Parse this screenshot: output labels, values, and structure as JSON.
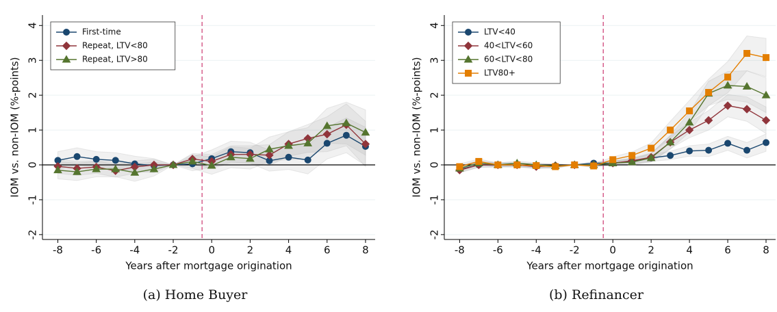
{
  "chart_data": [
    {
      "type": "line",
      "caption": "(a) Home Buyer",
      "x_label": "Years after mortgage origination",
      "y_label": "IOM vs. non-IOM (%-points)",
      "x": [
        -8,
        -7,
        -6,
        -5,
        -4,
        -3,
        -2,
        -1,
        0,
        1,
        2,
        3,
        4,
        5,
        6,
        7,
        8
      ],
      "xlim": [
        -8.8,
        8.5
      ],
      "xticks": [
        -8,
        -6,
        -4,
        -2,
        0,
        2,
        4,
        6,
        8
      ],
      "ylim": [
        -2.14,
        4.3
      ],
      "yticks": [
        -2,
        -1,
        0,
        1,
        2,
        3,
        4
      ],
      "grid": true,
      "vline": -0.5,
      "hline": 0,
      "legend": "top-left",
      "series": [
        {
          "name": "First-time",
          "color": "#1a476f",
          "marker": "circle",
          "values": [
            0.13,
            0.24,
            0.16,
            0.13,
            0.03,
            -0.02,
            0,
            0.03,
            0.18,
            0.38,
            0.35,
            0.12,
            0.22,
            0.14,
            0.62,
            0.85,
            0.53
          ],
          "ci": [
            0.25,
            0.25,
            0.22,
            0.22,
            0.22,
            0.2,
            0,
            0.2,
            0.25,
            0.3,
            0.3,
            0.3,
            0.35,
            0.4,
            0.45,
            0.5,
            0.55
          ]
        },
        {
          "name": "Repeat, LTV<80",
          "color": "#90353b",
          "marker": "diamond",
          "values": [
            -0.04,
            -0.1,
            -0.06,
            -0.17,
            -0.06,
            0.0,
            0,
            0.17,
            0.1,
            0.3,
            0.3,
            0.28,
            0.6,
            0.76,
            0.88,
            1.15,
            0.6
          ],
          "ci": [
            0.2,
            0.2,
            0.18,
            0.18,
            0.18,
            0.16,
            0,
            0.16,
            0.2,
            0.25,
            0.25,
            0.3,
            0.35,
            0.4,
            0.5,
            0.6,
            0.65
          ]
        },
        {
          "name": "Repeat, LTV>80",
          "color": "#55752f",
          "marker": "triangle",
          "values": [
            -0.15,
            -0.2,
            -0.12,
            -0.12,
            -0.22,
            -0.12,
            0,
            0.1,
            -0.02,
            0.22,
            0.18,
            0.45,
            0.55,
            0.62,
            1.12,
            1.2,
            0.93
          ],
          "ci": [
            0.25,
            0.25,
            0.22,
            0.22,
            0.25,
            0.2,
            0,
            0.2,
            0.25,
            0.3,
            0.3,
            0.35,
            0.4,
            0.45,
            0.5,
            0.6,
            0.65
          ]
        }
      ]
    },
    {
      "type": "line",
      "caption": "(b) Refinancer",
      "x_label": "Years after mortgage origination",
      "y_label": "IOM vs. non-IOM (%-points)",
      "x": [
        -8,
        -7,
        -6,
        -5,
        -4,
        -3,
        -2,
        -1,
        0,
        1,
        2,
        3,
        4,
        5,
        6,
        7,
        8
      ],
      "xlim": [
        -8.8,
        8.5
      ],
      "xticks": [
        -8,
        -6,
        -4,
        -2,
        0,
        2,
        4,
        6,
        8
      ],
      "ylim": [
        -2.14,
        4.3
      ],
      "yticks": [
        -2,
        -1,
        0,
        1,
        2,
        3,
        4
      ],
      "grid": true,
      "vline": -0.5,
      "hline": 0,
      "legend": "top-left",
      "series": [
        {
          "name": "LTV<40",
          "color": "#1a476f",
          "marker": "circle",
          "values": [
            -0.13,
            0.0,
            0.0,
            0.0,
            -0.03,
            -0.03,
            0,
            0.05,
            0.05,
            0.1,
            0.2,
            0.27,
            0.4,
            0.42,
            0.62,
            0.42,
            0.64
          ],
          "ci": [
            0.08,
            0.07,
            0.06,
            0.06,
            0.06,
            0.05,
            0,
            0.05,
            0.06,
            0.08,
            0.1,
            0.12,
            0.15,
            0.18,
            0.2,
            0.22,
            0.25
          ]
        },
        {
          "name": "40<LTV<60",
          "color": "#90353b",
          "marker": "diamond",
          "values": [
            -0.15,
            0.0,
            0.0,
            0.0,
            -0.05,
            -0.02,
            0,
            0.0,
            0.05,
            0.12,
            0.22,
            0.65,
            1.0,
            1.28,
            1.7,
            1.6,
            1.28
          ],
          "ci": [
            0.08,
            0.07,
            0.06,
            0.06,
            0.06,
            0.05,
            0,
            0.05,
            0.06,
            0.08,
            0.12,
            0.18,
            0.22,
            0.28,
            0.32,
            0.35,
            0.38
          ]
        },
        {
          "name": "60<LTV<80",
          "color": "#55752f",
          "marker": "triangle",
          "values": [
            -0.1,
            0.05,
            0.0,
            0.05,
            0.0,
            -0.03,
            0,
            0.0,
            0.05,
            0.08,
            0.2,
            0.65,
            1.22,
            2.05,
            2.28,
            2.25,
            2.0
          ],
          "ci": [
            0.08,
            0.07,
            0.06,
            0.06,
            0.06,
            0.05,
            0,
            0.05,
            0.06,
            0.08,
            0.12,
            0.2,
            0.28,
            0.35,
            0.4,
            0.45,
            0.5
          ]
        },
        {
          "name": "LTV80+",
          "color": "#e37e00",
          "marker": "square",
          "values": [
            -0.05,
            0.1,
            0.0,
            0.0,
            -0.02,
            -0.05,
            0,
            -0.03,
            0.15,
            0.27,
            0.48,
            1.0,
            1.55,
            2.08,
            2.52,
            3.2,
            3.08
          ],
          "ci": [
            0.08,
            0.07,
            0.06,
            0.06,
            0.06,
            0.05,
            0,
            0.05,
            0.08,
            0.1,
            0.15,
            0.25,
            0.3,
            0.38,
            0.45,
            0.5,
            0.55
          ]
        }
      ]
    }
  ]
}
